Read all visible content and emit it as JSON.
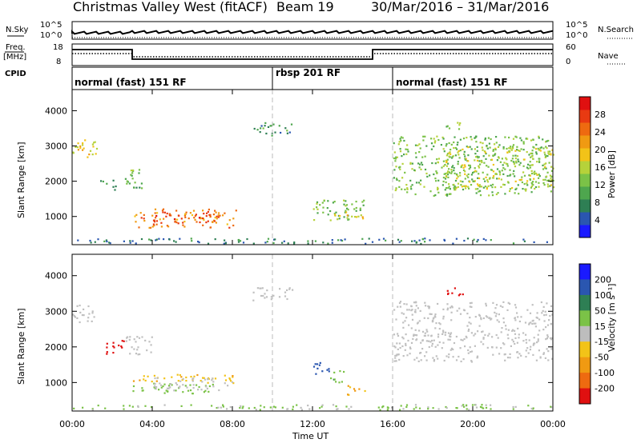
{
  "header": {
    "title_site": "Christmas Valley West (fitACF)",
    "title_beam": "Beam 19",
    "title_range": "30/Mar/2016 – 31/Mar/2016"
  },
  "aux": {
    "nsky_label": "N.Sky",
    "nsky_tick_top": "10^5",
    "nsky_tick_bottom": "10^0",
    "nsearch_label": "N.Search",
    "nsearch_tick_top": "10^5",
    "nsearch_tick_bottom": "10^0",
    "freq_label_line1": "Freq.",
    "freq_label_line2": "[MHz]",
    "freq_tick_top": "18",
    "freq_tick_bottom": "8",
    "nave_label": "Nave",
    "nave_tick_top": "60",
    "nave_tick_bottom": "0",
    "cpid_label": "CPID",
    "modes": [
      {
        "label": "normal (fast) 151 RF",
        "start_h": 0,
        "end_h": 10
      },
      {
        "label": "rbsp 201 RF",
        "start_h": 10,
        "end_h": 16
      },
      {
        "label": "normal (fast) 151 RF",
        "start_h": 16,
        "end_h": 24
      }
    ]
  },
  "colors": {
    "power_scale": [
      "#1a1aff",
      "#2a56b0",
      "#2e7f54",
      "#4ea64e",
      "#7bc247",
      "#b6d23a",
      "#f2c318",
      "#f09a12",
      "#ee6a10",
      "#e83a12",
      "#e01010"
    ],
    "velocity_scale": [
      "#e01010",
      "#ee6a10",
      "#f09a12",
      "#f2c318",
      "#bdbdbd",
      "#7bc247",
      "#2e7f54",
      "#2a56b0",
      "#1a1aff"
    ],
    "ground_scatter": "#c0c0c0"
  },
  "chart_data": [
    {
      "type": "heatmap",
      "panel": "power",
      "ylabel": "Slant Range [km]",
      "xlabel": "Time UT",
      "xlim": [
        0,
        24
      ],
      "ylim": [
        200,
        4600
      ],
      "yticks": [
        "1000",
        "2000",
        "3000",
        "4000"
      ],
      "xticks": [
        "00:00",
        "04:00",
        "08:00",
        "12:00",
        "16:00",
        "20:00",
        "00:00"
      ],
      "colorbar": {
        "label": "Power [dB]",
        "ticks": [
          "4",
          "8",
          "12",
          "16",
          "20",
          "24",
          "28"
        ],
        "range": [
          0,
          32
        ]
      },
      "regions": [
        {
          "t0": 0.0,
          "t1": 1.2,
          "r0": 2700,
          "r1": 3200,
          "value": 18
        },
        {
          "t0": 1.2,
          "t1": 3.5,
          "r0": 1750,
          "r1": 2050,
          "value": 10
        },
        {
          "t0": 2.6,
          "t1": 3.6,
          "r0": 2050,
          "r1": 2350,
          "value": 11
        },
        {
          "t0": 3.0,
          "t1": 8.2,
          "r0": 700,
          "r1": 1250,
          "value": 24
        },
        {
          "t0": 4.0,
          "t1": 7.0,
          "r0": 800,
          "r1": 1150,
          "value": 28
        },
        {
          "t0": 9.0,
          "t1": 11.0,
          "r0": 3300,
          "r1": 3700,
          "value": 8
        },
        {
          "t0": 12.0,
          "t1": 14.6,
          "r0": 900,
          "r1": 1500,
          "value": 12
        },
        {
          "t0": 13.0,
          "t1": 14.6,
          "r0": 950,
          "r1": 1150,
          "value": 18
        },
        {
          "t0": 16.0,
          "t1": 24.0,
          "r0": 1600,
          "r1": 3300,
          "value": 12
        },
        {
          "t0": 18.5,
          "t1": 24.0,
          "r0": 1800,
          "r1": 3000,
          "value": 16
        },
        {
          "t0": 18.5,
          "t1": 19.5,
          "r0": 3500,
          "r1": 3700,
          "value": 14
        },
        {
          "t0": 0.0,
          "t1": 24.0,
          "r0": 250,
          "r1": 400,
          "value": 6
        }
      ]
    },
    {
      "type": "heatmap",
      "panel": "velocity",
      "ylabel": "Slant Range [km]",
      "xlabel": "Time UT",
      "xlim": [
        0,
        24
      ],
      "ylim": [
        200,
        4600
      ],
      "yticks": [
        "1000",
        "2000",
        "3000",
        "4000"
      ],
      "xticks": [
        "00:00",
        "04:00",
        "08:00",
        "12:00",
        "16:00",
        "20:00",
        "00:00"
      ],
      "colorbar": {
        "label": "Velocity [m s⁻¹]",
        "ticks": [
          "200",
          "100",
          "50",
          "15",
          "-15",
          "-50",
          "-100",
          "-200"
        ]
      },
      "regions": [
        {
          "t0": 0.0,
          "t1": 1.2,
          "r0": 2700,
          "r1": 3200,
          "value": 0
        },
        {
          "t0": 1.6,
          "t1": 2.6,
          "r0": 1800,
          "r1": 2200,
          "value": -250
        },
        {
          "t0": 2.6,
          "t1": 4.0,
          "r0": 1800,
          "r1": 2350,
          "value": 0
        },
        {
          "t0": 3.0,
          "t1": 8.2,
          "r0": 1000,
          "r1": 1250,
          "value": -40
        },
        {
          "t0": 3.0,
          "t1": 7.0,
          "r0": 700,
          "r1": 1000,
          "value": 30
        },
        {
          "t0": 4.0,
          "t1": 8.0,
          "r0": 800,
          "r1": 1150,
          "value": 0
        },
        {
          "t0": 9.0,
          "t1": 11.0,
          "r0": 3300,
          "r1": 3700,
          "value": 0
        },
        {
          "t0": 12.0,
          "t1": 12.8,
          "r0": 1200,
          "r1": 1600,
          "value": 150
        },
        {
          "t0": 12.8,
          "t1": 13.6,
          "r0": 1000,
          "r1": 1400,
          "value": 40
        },
        {
          "t0": 13.6,
          "t1": 14.6,
          "r0": 650,
          "r1": 950,
          "value": -60
        },
        {
          "t0": 16.0,
          "t1": 24.0,
          "r0": 1600,
          "r1": 3300,
          "value": 0
        },
        {
          "t0": 18.5,
          "t1": 19.5,
          "r0": 3450,
          "r1": 3700,
          "value": -250
        },
        {
          "t0": 0.0,
          "t1": 24.0,
          "r0": 250,
          "r1": 400,
          "value": 20
        }
      ]
    }
  ]
}
